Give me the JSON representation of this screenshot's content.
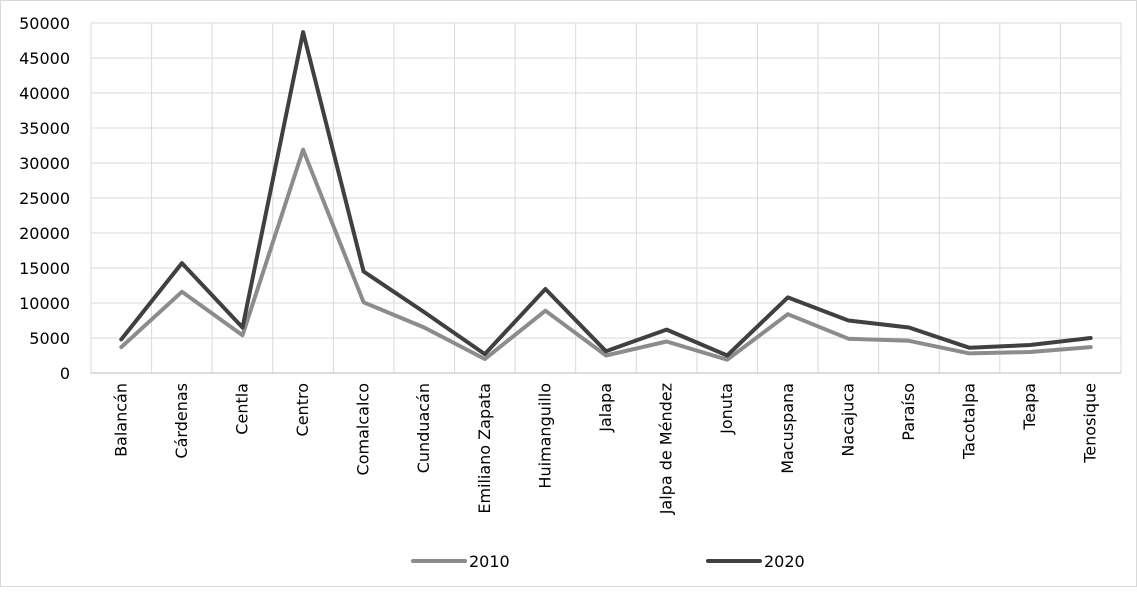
{
  "chart_data": {
    "type": "line",
    "categories": [
      "Balancán",
      "Cárdenas",
      "Centla",
      "Centro",
      "Comalcalco",
      "Cunduacán",
      "Emiliano Zapata",
      "Huimanguillo",
      "Jalapa",
      "Jalpa de Méndez",
      "Jonuta",
      "Macuspana",
      "Nacajuca",
      "Paraíso",
      "Tacotalpa",
      "Teapa",
      "Tenosique"
    ],
    "series": [
      {
        "name": "2010",
        "color": "#8c8c8c",
        "values": [
          3700,
          11600,
          5400,
          31900,
          10100,
          6500,
          2000,
          8900,
          2500,
          4500,
          1900,
          8400,
          4900,
          4600,
          2800,
          3000,
          3700
        ]
      },
      {
        "name": "2020",
        "color": "#404040",
        "values": [
          4800,
          15700,
          6500,
          48700,
          14500,
          8700,
          2700,
          12000,
          3100,
          6200,
          2500,
          10800,
          7500,
          6500,
          3600,
          4000,
          5000
        ]
      }
    ],
    "ylim": [
      0,
      50000
    ],
    "yticks": [
      0,
      5000,
      10000,
      15000,
      20000,
      25000,
      30000,
      35000,
      40000,
      45000,
      50000
    ],
    "grid": true,
    "legend_position": "bottom",
    "title": "",
    "xlabel": "",
    "ylabel": ""
  }
}
